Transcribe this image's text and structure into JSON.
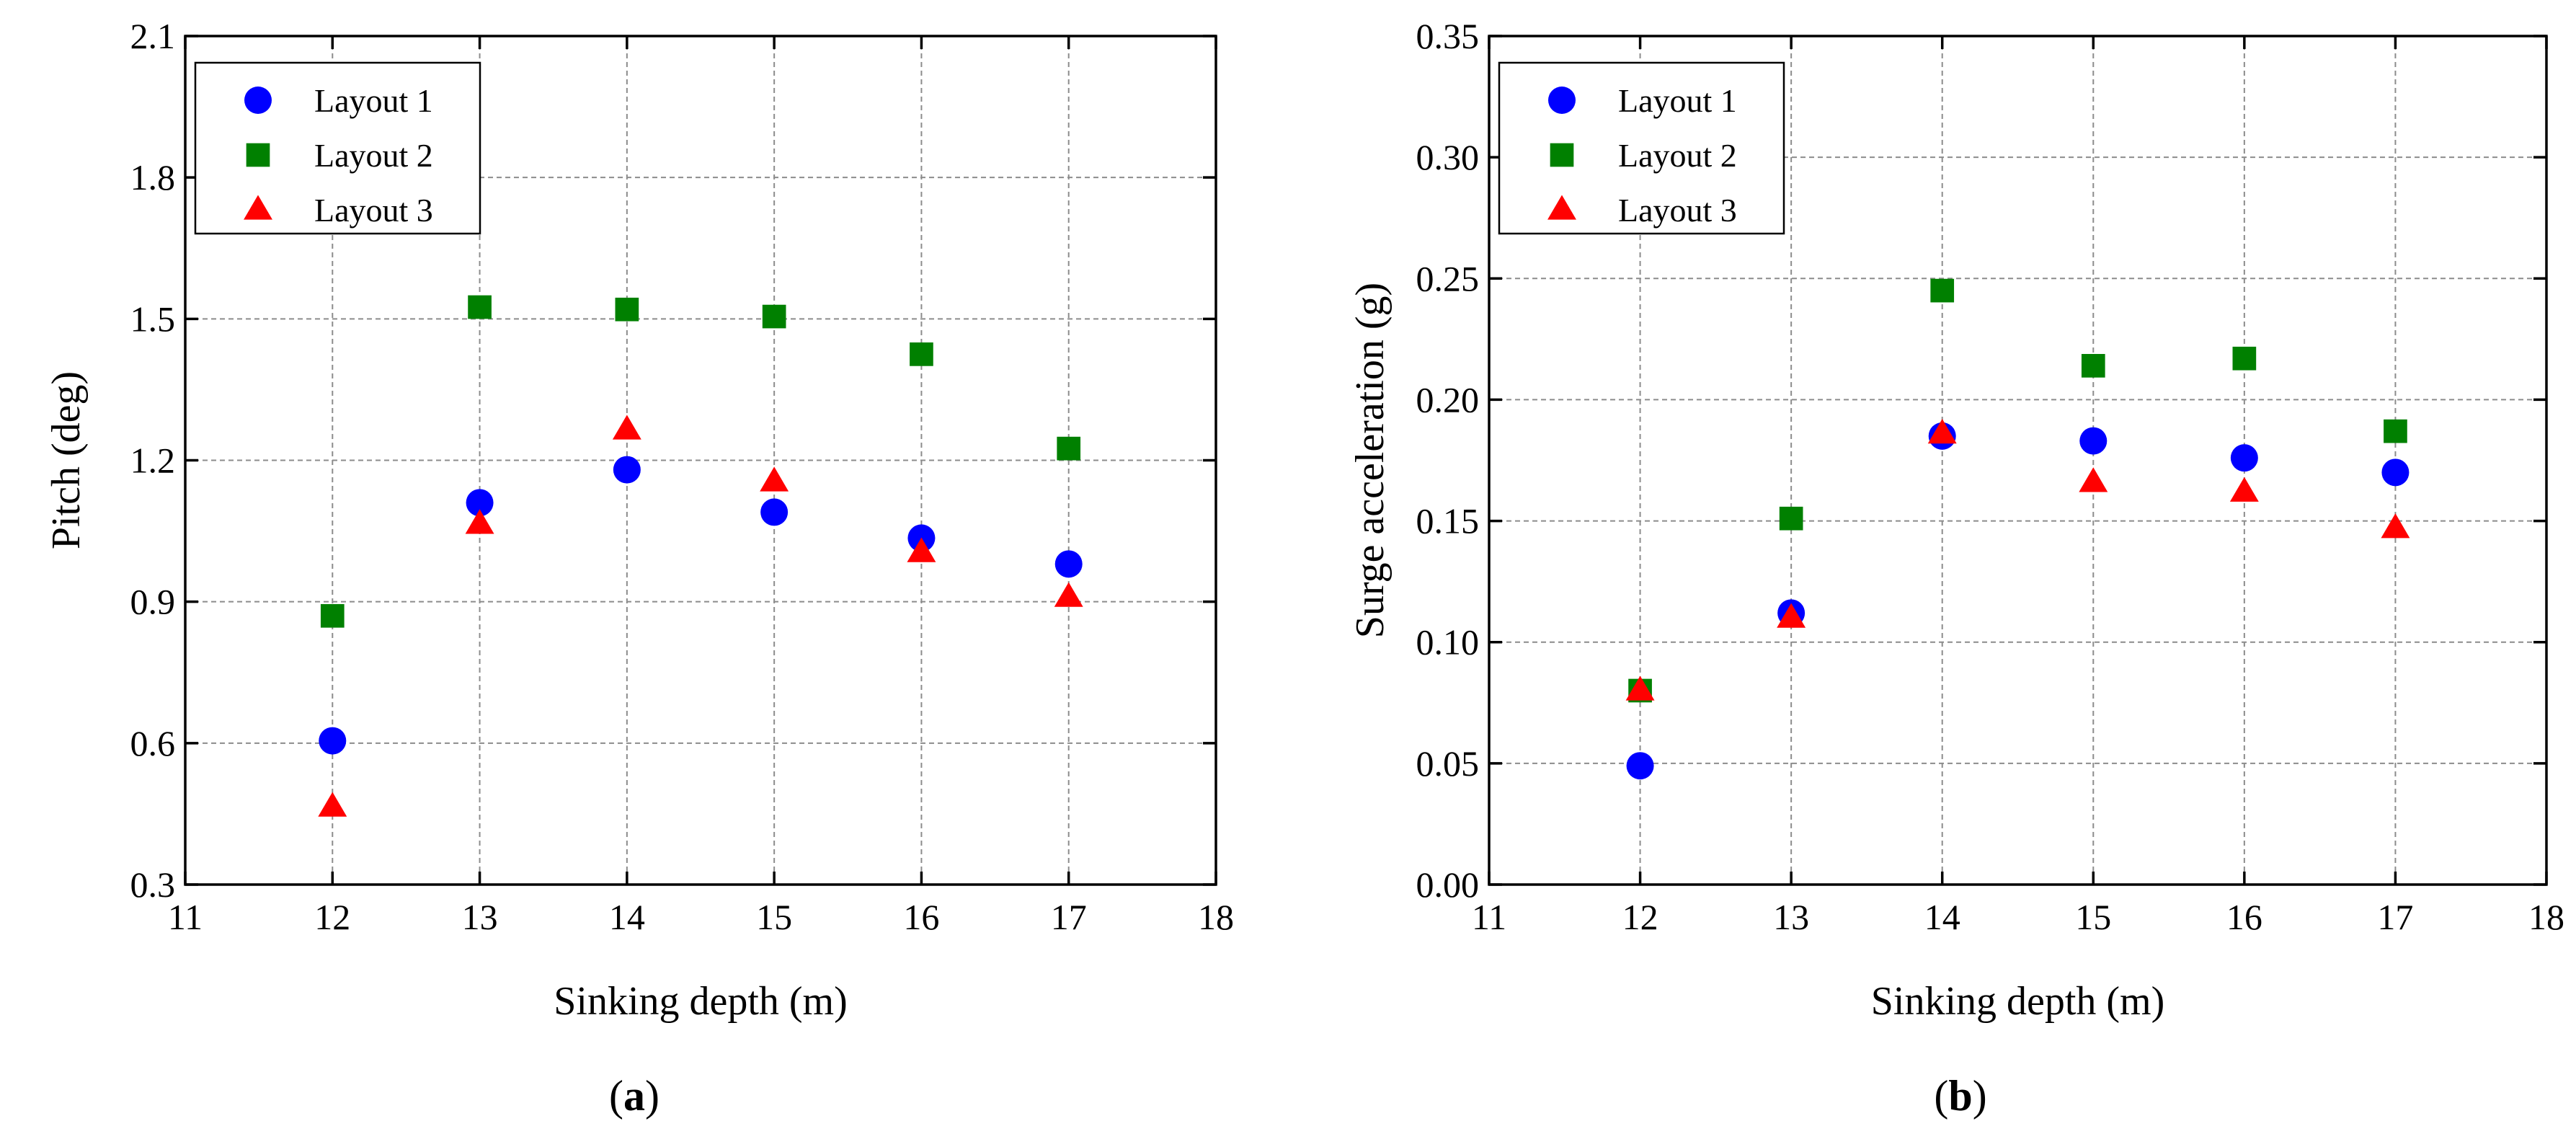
{
  "chart_data": [
    {
      "type": "scatter",
      "panel_label": "a",
      "xlabel": "Sinking depth (m)",
      "ylabel": "Pitch (deg)",
      "xlim": [
        11,
        18
      ],
      "ylim": [
        0.3,
        2.1
      ],
      "xticks": [
        "11",
        "12",
        "13",
        "14",
        "15",
        "16",
        "17",
        "18"
      ],
      "yticks": [
        "0.3",
        "0.6",
        "0.9",
        "1.2",
        "1.5",
        "1.8",
        "2.1"
      ],
      "grid": true,
      "legend_position": "top-left",
      "series": [
        {
          "name": "Layout 1",
          "marker": "circle",
          "color": "#0000ff",
          "x": [
            12,
            13,
            14,
            15,
            16,
            17
          ],
          "y": [
            0.605,
            1.11,
            1.18,
            1.09,
            1.035,
            0.98
          ]
        },
        {
          "name": "Layout 2",
          "marker": "square",
          "color": "#008000",
          "x": [
            12,
            13,
            14,
            15,
            16,
            17
          ],
          "y": [
            0.87,
            1.525,
            1.52,
            1.505,
            1.425,
            1.225
          ]
        },
        {
          "name": "Layout 3",
          "marker": "triangle",
          "color": "#ff0000",
          "x": [
            12,
            13,
            14,
            15,
            16,
            17
          ],
          "y": [
            0.465,
            1.065,
            1.265,
            1.155,
            1.005,
            0.91
          ]
        }
      ]
    },
    {
      "type": "scatter",
      "panel_label": "b",
      "xlabel": "Sinking depth (m)",
      "ylabel": "Surge acceleration (g)",
      "xlim": [
        11,
        18
      ],
      "ylim": [
        0.0,
        0.35
      ],
      "xticks": [
        "11",
        "12",
        "13",
        "14",
        "15",
        "16",
        "17",
        "18"
      ],
      "yticks": [
        "0.00",
        "0.05",
        "0.10",
        "0.15",
        "0.20",
        "0.25",
        "0.30",
        "0.35"
      ],
      "grid": true,
      "legend_position": "top-left",
      "series": [
        {
          "name": "Layout 1",
          "marker": "circle",
          "color": "#0000ff",
          "x": [
            12,
            13,
            14,
            15,
            16,
            17
          ],
          "y": [
            0.049,
            0.112,
            0.185,
            0.183,
            0.176,
            0.17
          ]
        },
        {
          "name": "Layout 2",
          "marker": "square",
          "color": "#008000",
          "x": [
            12,
            13,
            14,
            15,
            16,
            17
          ],
          "y": [
            0.08,
            0.151,
            0.245,
            0.214,
            0.217,
            0.187
          ]
        },
        {
          "name": "Layout 3",
          "marker": "triangle",
          "color": "#ff0000",
          "x": [
            12,
            13,
            14,
            15,
            16,
            17
          ],
          "y": [
            0.08,
            0.11,
            0.186,
            0.166,
            0.162,
            0.147
          ]
        }
      ]
    }
  ]
}
